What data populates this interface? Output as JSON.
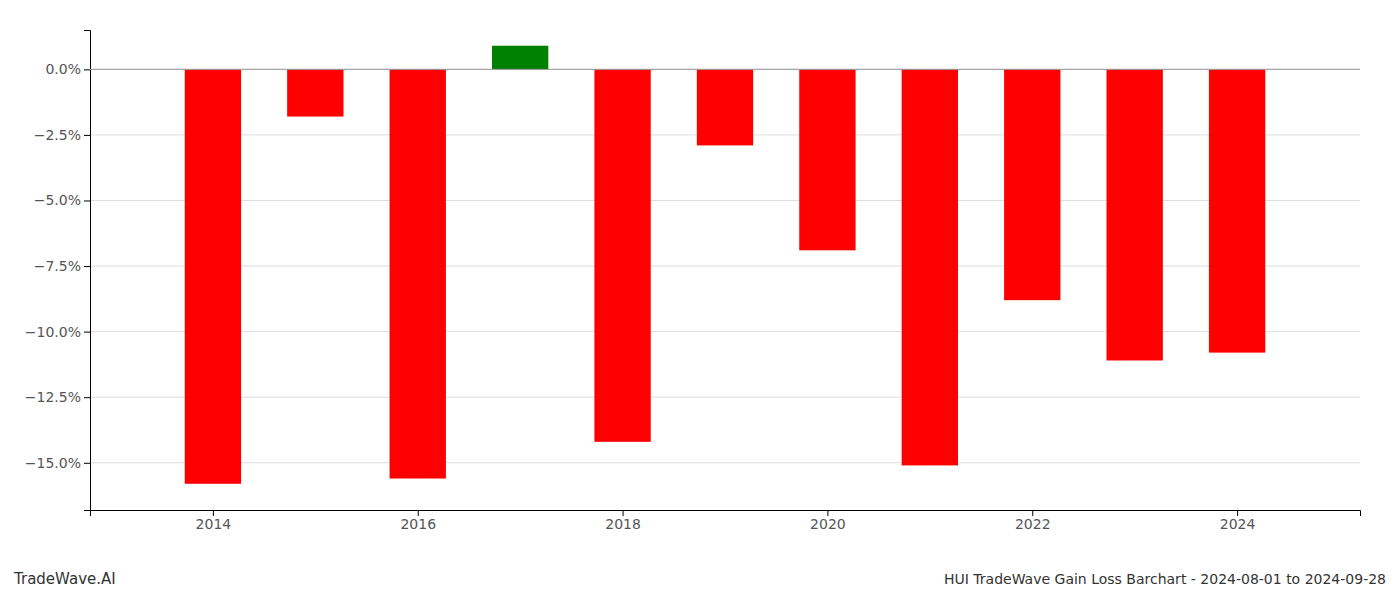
{
  "chart_data": {
    "type": "bar",
    "title": "HUI TradeWave Gain Loss Barchart - 2024-08-01 to 2024-09-28",
    "annotations": [
      "TradeWave.AI"
    ],
    "x": [
      2014,
      2015,
      2016,
      2017,
      2018,
      2019,
      2020,
      2021,
      2022,
      2023,
      2024
    ],
    "values": [
      -15.8,
      -1.8,
      -15.6,
      0.9,
      -14.2,
      -2.9,
      -6.9,
      -15.1,
      -8.8,
      -11.1,
      -10.8
    ],
    "colors": [
      "#ff0000",
      "#ff0000",
      "#ff0000",
      "#008000",
      "#ff0000",
      "#ff0000",
      "#ff0000",
      "#ff0000",
      "#ff0000",
      "#ff0000",
      "#ff0000"
    ],
    "xlim": [
      2012.8,
      2025.2
    ],
    "xticks": [
      2014,
      2016,
      2018,
      2020,
      2022,
      2024
    ],
    "ylim": [
      -16.8,
      1.5
    ],
    "yticks": [
      {
        "value": 0.0,
        "label": "0.0%"
      },
      {
        "value": -2.5,
        "label": "−2.5%"
      },
      {
        "value": -5.0,
        "label": "−5.0%"
      },
      {
        "value": -7.5,
        "label": "−7.5%"
      },
      {
        "value": -10.0,
        "label": "−10.0%"
      },
      {
        "value": -12.5,
        "label": "−12.5%"
      },
      {
        "value": -15.0,
        "label": "−15.0%"
      }
    ],
    "grid": true
  }
}
